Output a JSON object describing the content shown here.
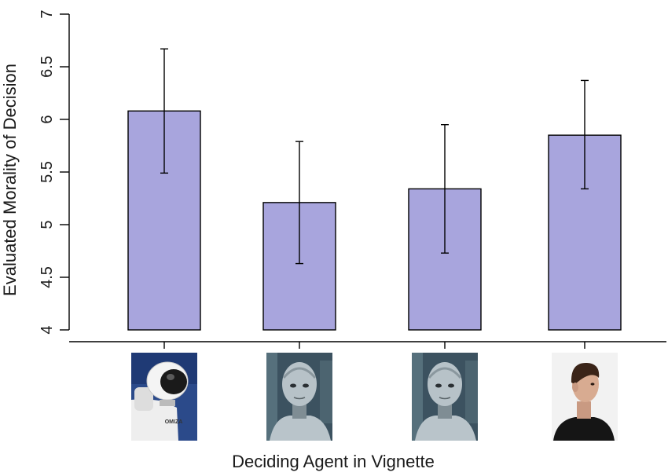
{
  "chart_data": {
    "type": "bar",
    "xlabel": "Deciding Agent in Vignette",
    "ylabel": "Evaluated Morality of  Decision",
    "ylim": [
      4,
      7
    ],
    "yticks": [
      "4",
      "4.5",
      "5",
      "5.5",
      "6",
      "6.5",
      "7"
    ],
    "categories": [
      {
        "icon": "mechanical-robot-icon",
        "label": "OMIZA"
      },
      {
        "icon": "humanoid-robot-face-icon",
        "label": ""
      },
      {
        "icon": "humanoid-robot-face-icon",
        "label": ""
      },
      {
        "icon": "human-man-icon",
        "label": ""
      }
    ],
    "values": [
      6.08,
      5.21,
      5.34,
      5.85
    ],
    "error_low": [
      5.49,
      4.63,
      4.73,
      5.34
    ],
    "error_high": [
      6.67,
      5.79,
      5.95,
      6.37
    ],
    "bar_color": "#a8a5dd",
    "bar_edge_color": "#000000",
    "grid": false
  }
}
